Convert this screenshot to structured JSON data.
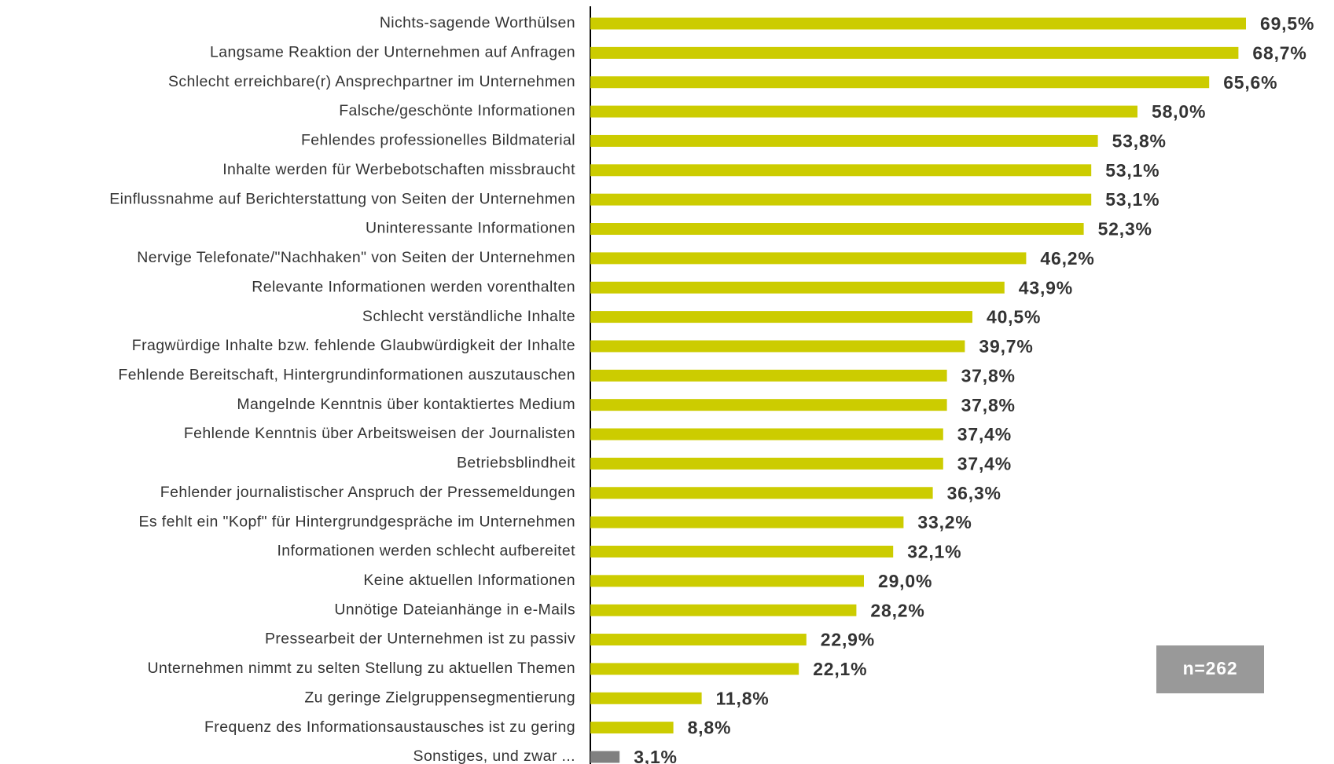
{
  "chart_data": {
    "type": "bar",
    "orientation": "horizontal",
    "categories": [
      "Nichts-sagende Worthülsen",
      "Langsame Reaktion der Unternehmen auf Anfragen",
      "Schlecht erreichbare(r) Ansprechpartner im Unternehmen",
      "Falsche/geschönte Informationen",
      "Fehlendes professionelles Bildmaterial",
      "Inhalte werden für Werbebotschaften missbraucht",
      "Einflussnahme auf Berichterstattung von Seiten der Unternehmen",
      "Uninteressante Informationen",
      "Nervige Telefonate/\"Nachhaken\" von Seiten der Unternehmen",
      "Relevante Informationen werden vorenthalten",
      "Schlecht verständliche Inhalte",
      "Fragwürdige Inhalte bzw. fehlende Glaubwürdigkeit der Inhalte",
      "Fehlende Bereitschaft, Hintergrundinformationen auszutauschen",
      "Mangelnde Kenntnis über kontaktiertes Medium",
      "Fehlende Kenntnis über Arbeitsweisen der Journalisten",
      "Betriebsblindheit",
      "Fehlender journalistischer Anspruch der Pressemeldungen",
      "Es fehlt ein \"Kopf\" für Hintergrundgespräche im Unternehmen",
      "Informationen werden schlecht aufbereitet",
      "Keine aktuellen Informationen",
      "Unnötige Dateianhänge in e-Mails",
      "Pressearbeit der Unternehmen ist zu passiv",
      "Unternehmen nimmt zu selten Stellung zu aktuellen Themen",
      "Zu geringe Zielgruppensegmentierung",
      "Frequenz des Informationsaustausches ist zu gering",
      "Sonstiges, und zwar ..."
    ],
    "values": [
      69.5,
      68.7,
      65.6,
      58.0,
      53.8,
      53.1,
      53.1,
      52.3,
      46.2,
      43.9,
      40.5,
      39.7,
      37.8,
      37.8,
      37.4,
      37.4,
      36.3,
      33.2,
      32.1,
      29.0,
      28.2,
      22.9,
      22.1,
      11.8,
      8.8,
      3.1
    ],
    "value_labels": [
      "69,5%",
      "68,7%",
      "65,6%",
      "58,0%",
      "53,8%",
      "53,1%",
      "53,1%",
      "52,3%",
      "46,2%",
      "43,9%",
      "40,5%",
      "39,7%",
      "37,8%",
      "37,8%",
      "37,4%",
      "37,4%",
      "36,3%",
      "33,2%",
      "32,1%",
      "29,0%",
      "28,2%",
      "22,9%",
      "22,1%",
      "11,8%",
      "8,8%",
      "3,1%"
    ],
    "colors": [
      "#cccc00",
      "#cccc00",
      "#cccc00",
      "#cccc00",
      "#cccc00",
      "#cccc00",
      "#cccc00",
      "#cccc00",
      "#cccc00",
      "#cccc00",
      "#cccc00",
      "#cccc00",
      "#cccc00",
      "#cccc00",
      "#cccc00",
      "#cccc00",
      "#cccc00",
      "#cccc00",
      "#cccc00",
      "#cccc00",
      "#cccc00",
      "#cccc00",
      "#cccc00",
      "#cccc00",
      "#cccc00",
      "#808080"
    ],
    "xlim": [
      0,
      78
    ],
    "annotation": "n=262"
  }
}
